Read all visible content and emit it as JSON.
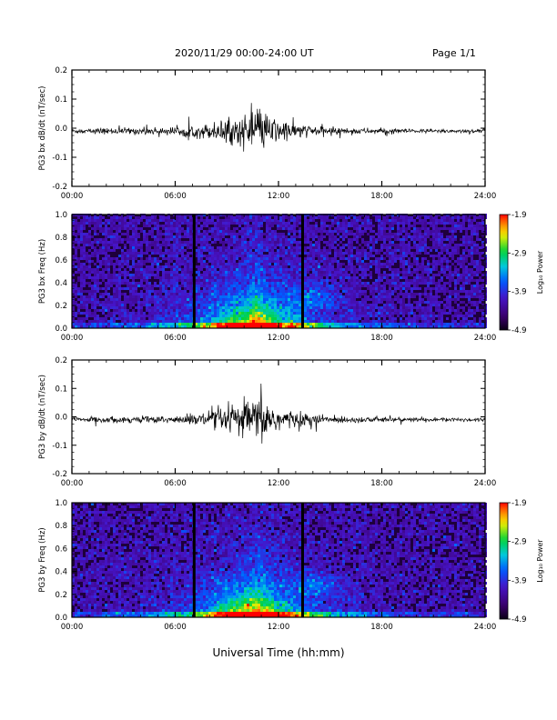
{
  "header": {
    "date_range": "2020/11/29  00:00-24:00 UT",
    "page": "Page 1/1"
  },
  "chart_data": [
    {
      "type": "line",
      "ylabel": "PG3 bx dB/dt (nT/sec)",
      "ylim": [
        -0.2,
        0.2
      ],
      "yticks": [
        "0.2",
        "0.1",
        "0.0",
        "-0.1",
        "-0.2"
      ],
      "xticks": [
        "00:00",
        "06:00",
        "12:00",
        "18:00",
        "24:00"
      ],
      "xlim_hours": [
        0,
        24
      ],
      "description_envelope": {
        "x_hours": [
          0,
          3,
          6,
          8,
          9,
          10,
          10.5,
          11,
          11.5,
          12,
          13,
          14,
          16,
          18,
          20,
          24
        ],
        "amplitude": [
          0.01,
          0.012,
          0.015,
          0.03,
          0.045,
          0.06,
          0.07,
          0.075,
          0.06,
          0.045,
          0.03,
          0.02,
          0.012,
          0.01,
          0.008,
          0.008
        ]
      }
    },
    {
      "type": "heatmap",
      "ylabel": "PG3 bx Freq (Hz)",
      "ylim": [
        0.0,
        1.0
      ],
      "yticks": [
        "1.0",
        "0.8",
        "0.6",
        "0.4",
        "0.2",
        "0.0"
      ],
      "xticks": [
        "00:00",
        "06:00",
        "12:00",
        "18:00",
        "24:00"
      ],
      "xlim_hours": [
        0,
        24
      ],
      "colorbar": {
        "label": "Log₁₀ Power",
        "ticks": [
          "-1.9",
          "-2.9",
          "-3.9",
          "-4.9"
        ],
        "range": [
          -4.9,
          -1.9
        ]
      },
      "gaps_hours": [
        7.1,
        13.4
      ]
    },
    {
      "type": "line",
      "ylabel": "PG3 by dB/dt (nT/sec)",
      "ylim": [
        -0.2,
        0.2
      ],
      "yticks": [
        "0.2",
        "0.1",
        "0.0",
        "-0.1",
        "-0.2"
      ],
      "xticks": [
        "00:00",
        "06:00",
        "12:00",
        "18:00",
        "24:00"
      ],
      "xlim_hours": [
        0,
        24
      ],
      "description_envelope": {
        "x_hours": [
          0,
          3,
          6,
          8,
          9,
          10,
          10.5,
          11,
          11.5,
          12,
          13,
          14,
          16,
          18,
          20,
          24
        ],
        "amplitude": [
          0.01,
          0.012,
          0.015,
          0.03,
          0.05,
          0.07,
          0.08,
          0.09,
          0.07,
          0.05,
          0.03,
          0.02,
          0.012,
          0.01,
          0.008,
          0.008
        ]
      }
    },
    {
      "type": "heatmap",
      "ylabel": "PG3 by Freq (Hz)",
      "ylim": [
        0.0,
        1.0
      ],
      "yticks": [
        "1.0",
        "0.8",
        "0.6",
        "0.4",
        "0.2",
        "0.0"
      ],
      "xticks": [
        "00:00",
        "06:00",
        "12:00",
        "18:00",
        "24:00"
      ],
      "xlim_hours": [
        0,
        24
      ],
      "colorbar": {
        "label": "Log₁₀ Power",
        "ticks": [
          "-1.9",
          "-2.9",
          "-3.9",
          "-4.9"
        ],
        "range": [
          -4.9,
          -1.9
        ]
      },
      "gaps_hours": [
        7.1,
        13.4
      ]
    }
  ],
  "xlabel": "Universal Time (hh:mm)"
}
